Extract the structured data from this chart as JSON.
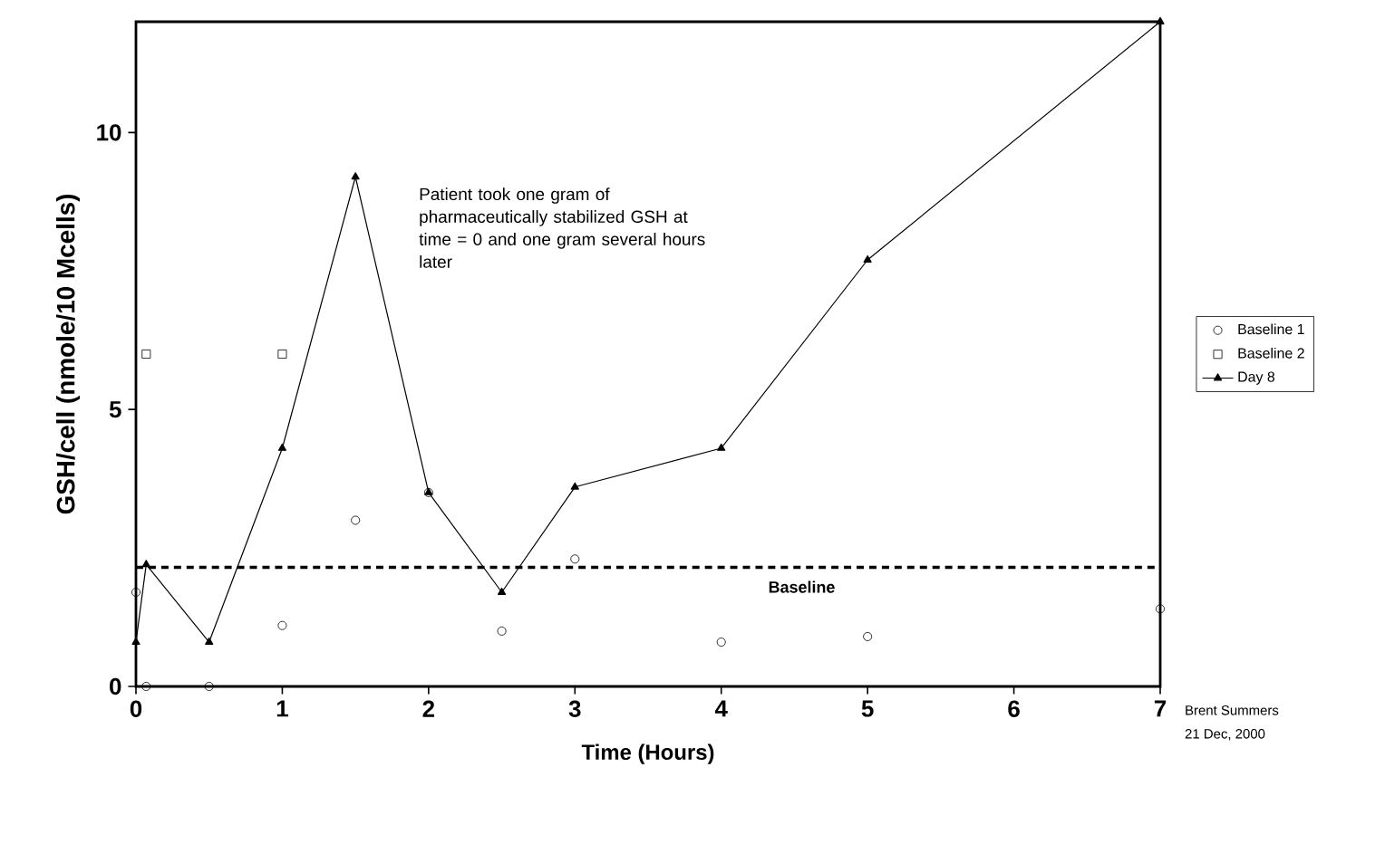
{
  "chart_data": {
    "type": "scatter",
    "xlabel": "Time (Hours)",
    "ylabel": "GSH/cell (nmole/10 Mcells)",
    "xlim": [
      0,
      7
    ],
    "xticks": [
      0,
      1,
      2,
      3,
      4,
      5,
      6,
      7
    ],
    "ylim": [
      0,
      12
    ],
    "yticks": [
      0,
      5,
      10
    ],
    "grid": false,
    "legend": "right",
    "series": [
      {
        "name": "Baseline 1",
        "marker": "circle",
        "color": "#000000",
        "x": [
          0,
          0.07,
          0.5,
          1,
          1.5,
          2,
          2.5,
          3,
          4,
          5,
          7
        ],
        "values": [
          1.7,
          0,
          0,
          1.1,
          3.0,
          3.5,
          1.0,
          2.3,
          0.8,
          0.9,
          1.4
        ]
      },
      {
        "name": "Baseline 2",
        "marker": "square",
        "color": "#000000",
        "x": [
          0.07,
          1
        ],
        "values": [
          6.0,
          6.0
        ]
      },
      {
        "name": "Day 8",
        "type": "line",
        "marker": "triangle",
        "color": "#000000",
        "x": [
          0,
          0.07,
          0.5,
          1,
          1.5,
          2,
          2.5,
          3,
          4,
          5,
          7
        ],
        "values": [
          0.8,
          2.2,
          0.8,
          4.3,
          9.2,
          3.5,
          1.7,
          3.6,
          4.3,
          7.7,
          12.0
        ]
      }
    ],
    "ref_lines": [
      {
        "axis": "y",
        "value": 2.15,
        "label": "Baseline",
        "color": "#000000",
        "line_style": "dashed"
      }
    ],
    "annotations": [
      "Patient took one gram of pharmaceutically stabilized GSH at time = 0 and one gram several hours later",
      "Brent Summers",
      "21 Dec, 2000"
    ]
  }
}
